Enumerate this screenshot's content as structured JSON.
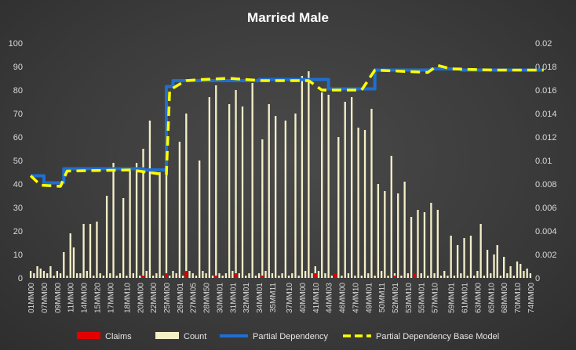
{
  "chart_data": {
    "type": "bar",
    "title": "Married Male",
    "y_left_lim": [
      0,
      100
    ],
    "y_left_ticks": [
      0,
      10,
      20,
      30,
      40,
      50,
      60,
      70,
      80,
      90,
      100
    ],
    "y_right_lim": [
      0,
      0.02
    ],
    "y_right_ticks": [
      "0",
      "0.002",
      "0.004",
      "0.006",
      "0.008",
      "0.01",
      "0.012",
      "0.014",
      "0.016",
      "0.018",
      "0.02"
    ],
    "x_tick_labels": [
      "01MM00",
      "07MM00",
      "09MM00",
      "11MM00",
      "14MM00",
      "15MM20",
      "17MM00",
      "18MM10",
      "20MM00",
      "22MM00",
      "25MM00",
      "26MM01",
      "27MM05",
      "28MM50",
      "30MM01",
      "31MM01",
      "32MM01",
      "34MM01",
      "35MM11",
      "37MM10",
      "40MM00",
      "41MM10",
      "44MM03",
      "46MM00",
      "47MM10",
      "49MM01",
      "50MM11",
      "52MM01",
      "53MM10",
      "55MM01",
      "57MM10",
      "59MM01",
      "61MM01",
      "63MM00",
      "65MM10",
      "68MM00",
      "70MM10",
      "74MM00"
    ],
    "legend_position": "bottom",
    "colors": {
      "claims": "#e00000",
      "count": "#f5efc8",
      "partial_dependency": "#1f6fd1",
      "partial_dependency_base": "#ffff00"
    },
    "series": [
      {
        "name": "Count",
        "axis": "left",
        "values": [
          3,
          2,
          5,
          4,
          3,
          2,
          5,
          1,
          3,
          2,
          11,
          1,
          19,
          13,
          2,
          2,
          23,
          3,
          23,
          1,
          24,
          2,
          1,
          35,
          2,
          49,
          1,
          2,
          34,
          1,
          47,
          2,
          49,
          1,
          55,
          3,
          67,
          1,
          2,
          45,
          1,
          46,
          1,
          3,
          2,
          58,
          1,
          70,
          3,
          2,
          1,
          50,
          3,
          2,
          77,
          1,
          82,
          2,
          1,
          2,
          74,
          3,
          80,
          2,
          73,
          1,
          2,
          83,
          1,
          2,
          59,
          3,
          74,
          2,
          69,
          1,
          2,
          67,
          1,
          2,
          70,
          1,
          86,
          3,
          88,
          2,
          5,
          3,
          79,
          2,
          78,
          1,
          2,
          60,
          1,
          75,
          2,
          77,
          1,
          64,
          1,
          63,
          2,
          72,
          1,
          40,
          3,
          37,
          1,
          52,
          2,
          36,
          1,
          41,
          2,
          26,
          1,
          29,
          2,
          28,
          1,
          32,
          2,
          29,
          1,
          3,
          1,
          18,
          1,
          14,
          2,
          17,
          1,
          18,
          1,
          3,
          23,
          1,
          12,
          2,
          10,
          14,
          1,
          9,
          2,
          5,
          1,
          7,
          6,
          3,
          4,
          2
        ],
        "color": "#f5efc8"
      },
      {
        "name": "Claims",
        "axis": "left",
        "bars": [
          {
            "index": 34,
            "value": 1
          },
          {
            "index": 41,
            "value": 2
          },
          {
            "index": 47,
            "value": 3
          },
          {
            "index": 56,
            "value": 1
          },
          {
            "index": 62,
            "value": 2
          },
          {
            "index": 70,
            "value": 1
          },
          {
            "index": 86,
            "value": 2
          },
          {
            "index": 92,
            "value": 2
          },
          {
            "index": 110,
            "value": 1
          },
          {
            "index": 116,
            "value": 2
          }
        ],
        "color": "#e00000"
      },
      {
        "name": "Partial Dependency",
        "axis": "right",
        "type": "step",
        "points": [
          [
            0,
            0.0087
          ],
          [
            4,
            0.0081
          ],
          [
            9,
            0.0081
          ],
          [
            10,
            0.0093
          ],
          [
            30,
            0.0093
          ],
          [
            34,
            0.0092
          ],
          [
            40,
            0.0092
          ],
          [
            41,
            0.0163
          ],
          [
            43,
            0.0168
          ],
          [
            69,
            0.0169
          ],
          [
            90,
            0.0161
          ],
          [
            100,
            0.0161
          ],
          [
            104,
            0.0177
          ],
          [
            118,
            0.0177
          ],
          [
            121,
            0.0178
          ],
          [
            130,
            0.0177
          ],
          [
            155,
            0.0177
          ]
        ],
        "color": "#1f6fd1"
      },
      {
        "name": "Partial Dependency Base Model",
        "axis": "right",
        "type": "line",
        "points": [
          [
            0,
            0.0087
          ],
          [
            3,
            0.0079
          ],
          [
            9,
            0.0078
          ],
          [
            11,
            0.0091
          ],
          [
            30,
            0.0092
          ],
          [
            38,
            0.0089
          ],
          [
            41,
            0.0088
          ],
          [
            42,
            0.016
          ],
          [
            45,
            0.0165
          ],
          [
            47,
            0.0168
          ],
          [
            52,
            0.0169
          ],
          [
            60,
            0.017
          ],
          [
            70,
            0.0168
          ],
          [
            84,
            0.0168
          ],
          [
            88,
            0.016
          ],
          [
            100,
            0.016
          ],
          [
            104,
            0.0177
          ],
          [
            120,
            0.0175
          ],
          [
            123,
            0.0181
          ],
          [
            127,
            0.0178
          ],
          [
            140,
            0.0177
          ],
          [
            155,
            0.0177
          ]
        ],
        "color": "#ffff00"
      }
    ]
  }
}
